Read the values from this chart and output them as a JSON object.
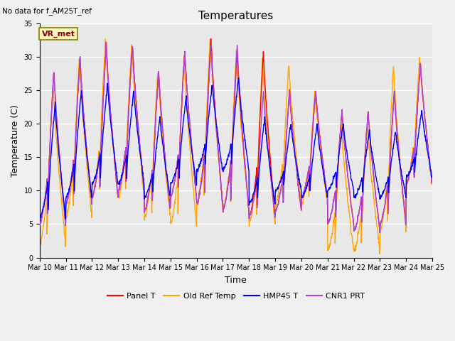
{
  "title": "Temperatures",
  "xlabel": "Time",
  "ylabel": "Temperature (C)",
  "note": "No data for f_AM25T_ref",
  "station_label": "VR_met",
  "ylim": [
    0,
    35
  ],
  "x_tick_labels": [
    "Mar 10",
    "Mar 11",
    "Mar 12",
    "Mar 13",
    "Mar 14",
    "Mar 15",
    "Mar 16",
    "Mar 17",
    "Mar 18",
    "Mar 19",
    "Mar 20",
    "Mar 21",
    "Mar 22",
    "Mar 23",
    "Mar 24",
    "Mar 25"
  ],
  "series": [
    {
      "label": "Panel T",
      "color": "#ff0000",
      "lw": 1.0
    },
    {
      "label": "Old Ref Temp",
      "color": "#ffa500",
      "lw": 1.0
    },
    {
      "label": "HMP45 T",
      "color": "#0000ee",
      "lw": 1.0
    },
    {
      "label": "CNR1 PRT",
      "color": "#aa44dd",
      "lw": 1.0
    }
  ],
  "bg_color": "#e8e8e8",
  "grid_color": "#ffffff",
  "fig_bg": "#f0f0f0",
  "title_fontsize": 11,
  "label_fontsize": 9,
  "tick_fontsize": 7,
  "legend_fontsize": 8
}
